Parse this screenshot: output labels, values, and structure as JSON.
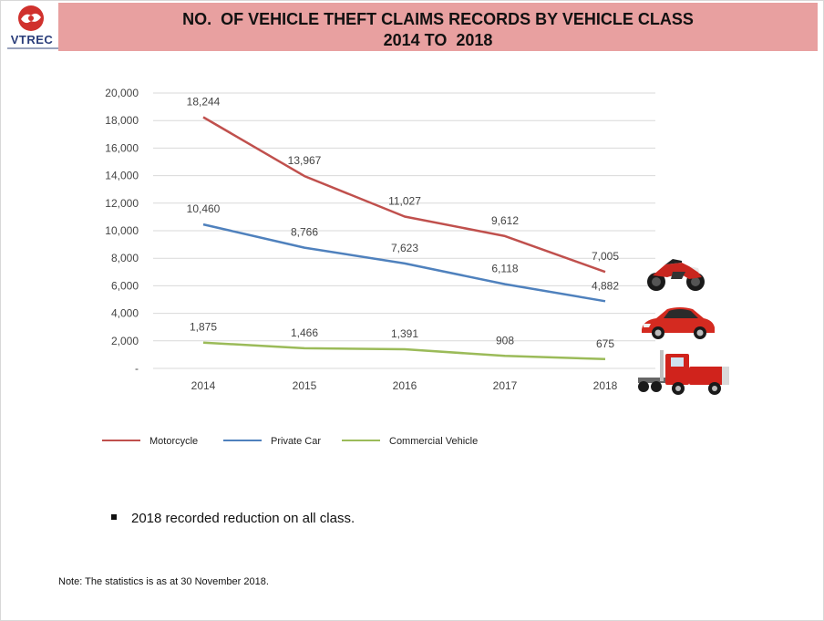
{
  "logo": {
    "text": "VTREC"
  },
  "header": {
    "title_line1": "NO.  OF VEHICLE THEFT CLAIMS RECORDS BY VEHICLE CLASS",
    "title_line2": "2014 TO  2018",
    "band_color": "#e8a0a0"
  },
  "chart_data": {
    "type": "line",
    "title": "",
    "xlabel": "",
    "ylabel": "",
    "categories": [
      "2014",
      "2015",
      "2016",
      "2017",
      "2018"
    ],
    "ylim": [
      0,
      20000
    ],
    "yticks": [
      0,
      2000,
      4000,
      6000,
      8000,
      10000,
      12000,
      14000,
      16000,
      18000,
      20000
    ],
    "ytick_labels": [
      "-",
      "2,000",
      "4,000",
      "6,000",
      "8,000",
      "10,000",
      "12,000",
      "14,000",
      "16,000",
      "18,000",
      "20,000"
    ],
    "grid": true,
    "legend_position": "bottom-left",
    "series": [
      {
        "name": "Motorcycle",
        "color": "#c0504d",
        "values": [
          18244,
          13967,
          11027,
          9612,
          7005
        ],
        "labels": [
          "18,244",
          "13,967",
          "11,027",
          "9,612",
          "7,005"
        ]
      },
      {
        "name": "Private Car",
        "color": "#4f81bd",
        "values": [
          10460,
          8766,
          7623,
          6118,
          4882
        ],
        "labels": [
          "10,460",
          "8,766",
          "7,623",
          "6,118",
          "4,882"
        ]
      },
      {
        "name": "Commercial Vehicle",
        "color": "#9bbb59",
        "values": [
          1875,
          1466,
          1391,
          908,
          675
        ],
        "labels": [
          "1,875",
          "1,466",
          "1,391",
          "908",
          "675"
        ]
      }
    ]
  },
  "icons": [
    "motorcycle-icon",
    "car-icon",
    "truck-icon"
  ],
  "bullet_text": "2018 recorded reduction on all class.",
  "note": "Note:  The statistics is as at 30 November 2018."
}
